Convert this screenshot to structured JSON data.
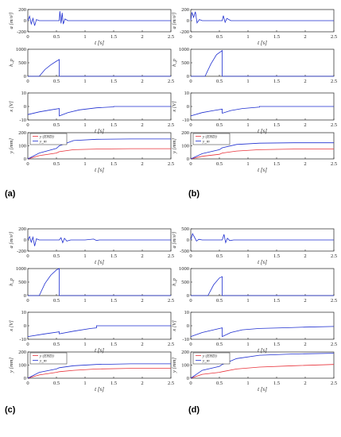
{
  "panel_labels": [
    "(a)",
    "(b)",
    "(c)",
    "(d)"
  ],
  "colors": {
    "blue": "#1f2fd0",
    "red": "#e8323a",
    "axis": "#222222"
  },
  "chart_data": [
    {
      "panel": "(a)",
      "subplots": [
        {
          "type": "line",
          "xlabel": "t [s]",
          "ylabel": "a [m/s²]",
          "xlim": [
            0,
            2.5
          ],
          "ylim": [
            -200,
            200
          ],
          "yticks": [
            -200,
            0,
            200
          ],
          "xticks": [
            0,
            0.5,
            1,
            1.5,
            2,
            2.5
          ],
          "series": [
            {
              "color": "blue",
              "x": [
                0,
                0.03,
                0.06,
                0.09,
                0.12,
                0.15,
                0.2,
                0.3,
                0.45,
                0.55,
                0.56,
                0.58,
                0.6,
                0.62,
                0.65,
                0.7,
                0.8,
                1.0,
                1.5,
                2.5
              ],
              "y": [
                0,
                80,
                -60,
                40,
                -90,
                20,
                0,
                0,
                0,
                0,
                170,
                -50,
                140,
                -60,
                30,
                0,
                0,
                0,
                0,
                0
              ]
            }
          ]
        },
        {
          "type": "line",
          "xlabel": "",
          "ylabel": "h_p",
          "xlim": [
            0,
            2.5
          ],
          "ylim": [
            0,
            1000
          ],
          "yticks": [
            0,
            500,
            1000
          ],
          "xticks": [
            0,
            0.5,
            1,
            1.5,
            2,
            2.5
          ],
          "series": [
            {
              "color": "blue",
              "x": [
                0,
                0.2,
                0.3,
                0.4,
                0.5,
                0.55,
                0.55,
                2.5
              ],
              "y": [
                0,
                0,
                250,
                420,
                560,
                620,
                0,
                0
              ]
            }
          ]
        },
        {
          "type": "line",
          "xlabel": "t [s]",
          "ylabel": "x [V]",
          "xlim": [
            0,
            2.5
          ],
          "ylim": [
            -10,
            10
          ],
          "yticks": [
            -10,
            0,
            10
          ],
          "xticks": [
            0,
            0.5,
            1,
            1.5,
            2,
            2.5
          ],
          "series": [
            {
              "color": "blue",
              "x": [
                0,
                0.2,
                0.4,
                0.55,
                0.55,
                0.7,
                0.9,
                1.2,
                1.5,
                1.5,
                2.5
              ],
              "y": [
                -6,
                -4,
                -2.5,
                -1.5,
                -7,
                -4.5,
                -2.5,
                -1,
                -0.3,
                0,
                0
              ]
            }
          ]
        },
        {
          "type": "line",
          "xlabel": "t [s]",
          "ylabel": "y [mm]",
          "xlim": [
            0,
            2.5
          ],
          "ylim": [
            0,
            200
          ],
          "yticks": [
            0,
            100,
            200
          ],
          "xticks": [
            0,
            0.5,
            1,
            1.5,
            2,
            2.5
          ],
          "legend": [
            "y (EHD)",
            "y_m"
          ],
          "series": [
            {
              "name": "y (EHD)",
              "color": "red",
              "x": [
                0,
                0.2,
                0.5,
                0.55,
                0.8,
                1.2,
                1.8,
                2.5
              ],
              "y": [
                0,
                25,
                45,
                55,
                70,
                75,
                78,
                78
              ]
            },
            {
              "name": "y_m",
              "color": "blue",
              "x": [
                0,
                0.2,
                0.5,
                0.55,
                0.8,
                1.2,
                1.8,
                2.5
              ],
              "y": [
                0,
                45,
                80,
                100,
                140,
                150,
                152,
                152
              ]
            }
          ]
        }
      ]
    },
    {
      "panel": "(b)",
      "subplots": [
        {
          "type": "line",
          "xlabel": "t [s]",
          "ylabel": "a [m/s²]",
          "xlim": [
            0,
            2.5
          ],
          "ylim": [
            -200,
            200
          ],
          "yticks": [
            -200,
            0,
            200
          ],
          "xticks": [
            0,
            0.5,
            1,
            1.5,
            2,
            2.5
          ],
          "series": [
            {
              "color": "blue",
              "x": [
                0,
                0.02,
                0.05,
                0.08,
                0.11,
                0.15,
                0.2,
                0.3,
                0.5,
                0.55,
                0.57,
                0.6,
                0.63,
                0.7,
                1.0,
                2.5
              ],
              "y": [
                0,
                150,
                60,
                160,
                -40,
                20,
                0,
                0,
                0,
                0,
                90,
                -30,
                40,
                0,
                0,
                0
              ]
            }
          ]
        },
        {
          "type": "line",
          "xlabel": "",
          "ylabel": "h_p",
          "xlim": [
            0,
            2.5
          ],
          "ylim": [
            0,
            1000
          ],
          "yticks": [
            0,
            500,
            1000
          ],
          "xticks": [
            0,
            0.5,
            1,
            1.5,
            2,
            2.5
          ],
          "series": [
            {
              "color": "blue",
              "x": [
                0,
                0.25,
                0.35,
                0.45,
                0.55,
                0.55,
                2.5
              ],
              "y": [
                0,
                0,
                450,
                800,
                950,
                0,
                0
              ]
            }
          ]
        },
        {
          "type": "line",
          "xlabel": "t [s]",
          "ylabel": "x [V]",
          "xlim": [
            0,
            2.5
          ],
          "ylim": [
            -10,
            10
          ],
          "yticks": [
            -10,
            0,
            10
          ],
          "xticks": [
            0,
            0.5,
            1,
            1.5,
            2,
            2.5
          ],
          "series": [
            {
              "color": "blue",
              "x": [
                0,
                0.2,
                0.4,
                0.55,
                0.55,
                0.7,
                0.9,
                1.2,
                1.2,
                2.5
              ],
              "y": [
                -7,
                -4.5,
                -3,
                -2,
                -5,
                -3,
                -1.5,
                -0.5,
                0,
                0
              ]
            }
          ]
        },
        {
          "type": "line",
          "xlabel": "t [s]",
          "ylabel": "y [mm]",
          "xlim": [
            0,
            2.5
          ],
          "ylim": [
            0,
            200
          ],
          "yticks": [
            0,
            100,
            200
          ],
          "xticks": [
            0,
            0.5,
            1,
            1.5,
            2,
            2.5
          ],
          "legend": [
            "y (EHD)",
            "y_m"
          ],
          "series": [
            {
              "name": "y (EHD)",
              "color": "red",
              "x": [
                0,
                0.2,
                0.5,
                0.55,
                0.8,
                1.2,
                1.8,
                2.5
              ],
              "y": [
                0,
                20,
                35,
                45,
                60,
                70,
                75,
                75
              ]
            },
            {
              "name": "y_m",
              "color": "blue",
              "x": [
                0,
                0.2,
                0.5,
                0.55,
                0.8,
                1.2,
                1.8,
                2.5
              ],
              "y": [
                0,
                40,
                70,
                85,
                110,
                120,
                123,
                123
              ]
            }
          ]
        }
      ]
    },
    {
      "panel": "(c)",
      "subplots": [
        {
          "type": "line",
          "xlabel": "t [s]",
          "ylabel": "a [m/s²]",
          "xlim": [
            0,
            2.5
          ],
          "ylim": [
            -200,
            200
          ],
          "yticks": [
            -200,
            0,
            200
          ],
          "xticks": [
            0,
            0.5,
            1,
            1.5,
            2,
            2.5
          ],
          "series": [
            {
              "color": "blue",
              "x": [
                0,
                0.03,
                0.06,
                0.09,
                0.12,
                0.15,
                0.2,
                0.4,
                0.55,
                0.58,
                0.61,
                0.64,
                0.68,
                0.75,
                1.0,
                1.15,
                1.2,
                1.25,
                2.5
              ],
              "y": [
                0,
                60,
                -40,
                50,
                -110,
                20,
                0,
                0,
                0,
                40,
                -50,
                30,
                -20,
                0,
                0,
                15,
                -10,
                0,
                0
              ]
            }
          ]
        },
        {
          "type": "line",
          "xlabel": "",
          "ylabel": "h_p",
          "xlim": [
            0,
            2.5
          ],
          "ylim": [
            0,
            1000
          ],
          "yticks": [
            0,
            500,
            1000
          ],
          "xticks": [
            0,
            0.5,
            1,
            1.5,
            2,
            2.5
          ],
          "series": [
            {
              "color": "blue",
              "x": [
                0,
                0.2,
                0.3,
                0.4,
                0.5,
                0.55,
                0.55,
                2.5
              ],
              "y": [
                0,
                0,
                450,
                750,
                950,
                1000,
                0,
                0
              ]
            }
          ]
        },
        {
          "type": "line",
          "xlabel": "t [s]",
          "ylabel": "x [V]",
          "xlim": [
            0,
            2.5
          ],
          "ylim": [
            -10,
            10
          ],
          "yticks": [
            -10,
            0,
            10
          ],
          "xticks": [
            0,
            0.5,
            1,
            1.5,
            2,
            2.5
          ],
          "series": [
            {
              "color": "blue",
              "x": [
                0,
                0.3,
                0.55,
                0.55,
                0.8,
                1.1,
                1.2,
                1.2,
                2.5
              ],
              "y": [
                -8,
                -6,
                -4.5,
                -6,
                -4,
                -2,
                -1.5,
                0,
                0
              ]
            }
          ]
        },
        {
          "type": "line",
          "xlabel": "t [s]",
          "ylabel": "y [mm]",
          "xlim": [
            0,
            2.5
          ],
          "ylim": [
            0,
            200
          ],
          "yticks": [
            0,
            100,
            200
          ],
          "xticks": [
            0,
            0.5,
            1,
            1.5,
            2,
            2.5
          ],
          "legend": [
            "y (EHD)",
            "y_m"
          ],
          "series": [
            {
              "name": "y (EHD)",
              "color": "red",
              "x": [
                0,
                0.2,
                0.5,
                0.55,
                0.8,
                1.2,
                1.8,
                2.5
              ],
              "y": [
                0,
                25,
                45,
                50,
                60,
                70,
                75,
                75
              ]
            },
            {
              "name": "y_m",
              "color": "blue",
              "x": [
                0,
                0.2,
                0.5,
                0.55,
                0.8,
                1.2,
                1.8,
                2.5
              ],
              "y": [
                0,
                45,
                70,
                80,
                95,
                105,
                110,
                110
              ]
            }
          ]
        }
      ]
    },
    {
      "panel": "(d)",
      "subplots": [
        {
          "type": "line",
          "xlabel": "t [s]",
          "ylabel": "a [m/s²]",
          "xlim": [
            0,
            2.5
          ],
          "ylim": [
            -500,
            500
          ],
          "yticks": [
            -500,
            0,
            500
          ],
          "xticks": [
            0,
            0.5,
            1,
            1.5,
            2,
            2.5
          ],
          "series": [
            {
              "color": "blue",
              "x": [
                0,
                0.03,
                0.06,
                0.1,
                0.14,
                0.2,
                0.4,
                0.55,
                0.58,
                0.61,
                0.64,
                0.68,
                0.75,
                1.0,
                2.5
              ],
              "y": [
                0,
                280,
                150,
                -50,
                30,
                0,
                0,
                0,
                250,
                -120,
                80,
                -30,
                0,
                0,
                0
              ]
            }
          ]
        },
        {
          "type": "line",
          "xlabel": "",
          "ylabel": "h_p",
          "xlim": [
            0,
            2.5
          ],
          "ylim": [
            0,
            1000
          ],
          "yticks": [
            0,
            500,
            1000
          ],
          "xticks": [
            0,
            0.5,
            1,
            1.5,
            2,
            2.5
          ],
          "series": [
            {
              "color": "blue",
              "x": [
                0,
                0.3,
                0.4,
                0.5,
                0.55,
                0.55,
                2.5
              ],
              "y": [
                0,
                0,
                400,
                650,
                700,
                0,
                0
              ]
            }
          ]
        },
        {
          "type": "line",
          "xlabel": "t [s]",
          "ylabel": "x [V]",
          "xlim": [
            0,
            2.5
          ],
          "ylim": [
            -10,
            10
          ],
          "yticks": [
            -10,
            0,
            10
          ],
          "xticks": [
            0,
            0.5,
            1,
            1.5,
            2,
            2.5
          ],
          "series": [
            {
              "color": "blue",
              "x": [
                0,
                0.2,
                0.4,
                0.55,
                0.55,
                0.7,
                0.9,
                1.2,
                1.6,
                2.0,
                2.5
              ],
              "y": [
                -8,
                -5,
                -3,
                -1.5,
                -8,
                -5,
                -3,
                -2,
                -1.5,
                -1,
                -0.5
              ]
            }
          ]
        },
        {
          "type": "line",
          "xlabel": "t [s]",
          "ylabel": "y [mm]",
          "xlim": [
            0,
            2.5
          ],
          "ylim": [
            0,
            200
          ],
          "yticks": [
            0,
            100,
            200
          ],
          "xticks": [
            0,
            0.5,
            1,
            1.5,
            2,
            2.5
          ],
          "legend": [
            "y (EHD)",
            "y_m"
          ],
          "series": [
            {
              "name": "y (EHD)",
              "color": "red",
              "x": [
                0,
                0.2,
                0.5,
                0.55,
                0.8,
                1.2,
                1.8,
                2.5
              ],
              "y": [
                0,
                30,
                45,
                50,
                70,
                85,
                95,
                105
              ]
            },
            {
              "name": "y_m",
              "color": "blue",
              "x": [
                0,
                0.2,
                0.5,
                0.55,
                0.8,
                1.2,
                1.8,
                2.5
              ],
              "y": [
                0,
                60,
                90,
                105,
                150,
                175,
                185,
                190
              ]
            }
          ]
        }
      ]
    }
  ]
}
